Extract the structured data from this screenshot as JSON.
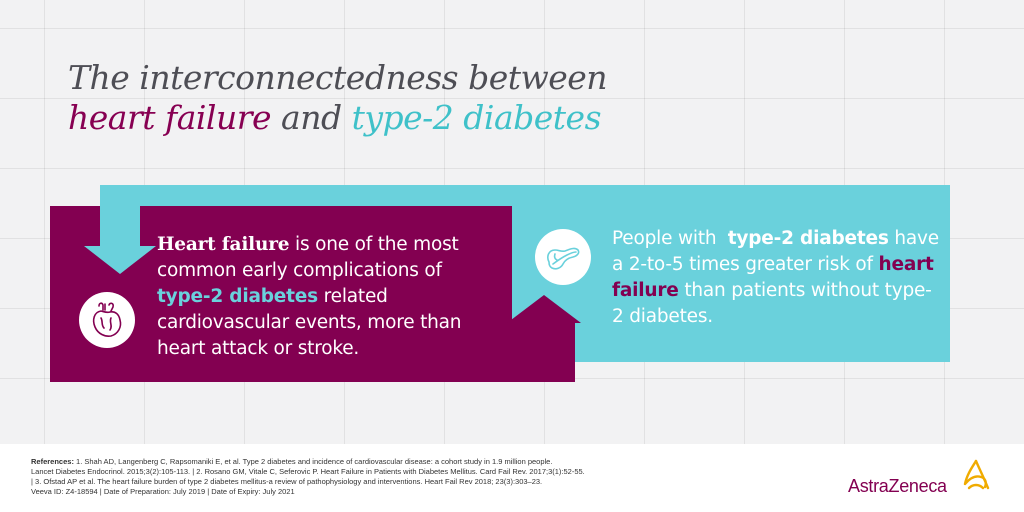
{
  "title": {
    "line1": "The interconnectedness between",
    "hf": "heart failure",
    "and": " and ",
    "t2d": "type-2 diabetes"
  },
  "left_panel": {
    "hf_bold": "Heart failure",
    "text1": " is one of the most common early complications of ",
    "t2d": "type-2 diabetes",
    "text2": " related cardiovascular events, more than heart attack or stroke.",
    "icon": "heart-icon"
  },
  "right_panel": {
    "text1": "People with  ",
    "t2d": "type-2 diabetes",
    "text2": " have a 2-to-5 times greater risk of ",
    "hf": "heart failure",
    "text3": " than patients without type-2 diabetes.",
    "icon": "pancreas-icon"
  },
  "footer": {
    "refs_label": "References:",
    "refs_line1": " 1. Shah AD, Langenberg C, Rapsomaniki E, et al. Type 2 diabetes and incidence of cardiovascular disease: a cohort study in 1.9 million people.",
    "refs_line2": "Lancet Diabetes Endocrinol. 2015;3(2):105-113.  |  2. Rosano GM, Vitale C, Seferovic P. Heart Failure in Patients with Diabetes Mellitus. Card Fail Rev. 2017;3(1):52-55.",
    "refs_line3": "| 3. Ofstad AP et al. The heart failure burden of type 2 diabetes mellitus-a review of pathophysiology and interventions. Heart Fail Rev 2018; 23(3):303–23.",
    "veeva": "Veeva ID: Z4-18594 | Date of Preparation: July 2019 | Date of Expiry: July 2021",
    "logo_text": "AstraZeneca"
  },
  "colors": {
    "plum": "#830051",
    "teal": "#6ad1dc",
    "background": "#f2f2f3"
  }
}
